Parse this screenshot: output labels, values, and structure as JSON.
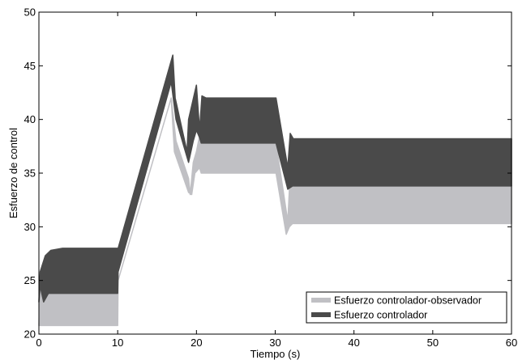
{
  "chart_data": {
    "type": "area",
    "title": "",
    "xlabel": "Tiempo (s)",
    "ylabel": "Esfuerzo de control",
    "xlim": [
      0,
      60
    ],
    "ylim": [
      20,
      50
    ],
    "xticks": [
      0,
      10,
      20,
      30,
      40,
      50,
      60
    ],
    "yticks": [
      20,
      25,
      30,
      35,
      40,
      45,
      50
    ],
    "grid": false,
    "legend_position": "bottom-right",
    "series": [
      {
        "name": "Esfuerzo controlador-observador",
        "color": "#c0c0c4",
        "upper": [
          [
            0,
            20.8
          ],
          [
            0.15,
            25.5
          ],
          [
            0.6,
            23.2
          ],
          [
            1.2,
            23.8
          ],
          [
            10,
            23.8
          ],
          [
            10.05,
            25.0
          ],
          [
            16.8,
            42.0
          ],
          [
            17.4,
            38.0
          ],
          [
            19.0,
            34.5
          ],
          [
            19.2,
            33.0
          ],
          [
            19.6,
            36.0
          ],
          [
            20.0,
            37.0
          ],
          [
            20.4,
            38.5
          ],
          [
            20.6,
            37.8
          ],
          [
            30.1,
            37.8
          ],
          [
            31.6,
            30.5
          ],
          [
            31.8,
            33.5
          ],
          [
            32.2,
            33.8
          ],
          [
            60,
            33.8
          ]
        ],
        "lower": [
          [
            0,
            20.8
          ],
          [
            10,
            20.8
          ],
          [
            10.05,
            25.0
          ],
          [
            16.8,
            42.0
          ],
          [
            17.2,
            37.0
          ],
          [
            19.0,
            33.2
          ],
          [
            19.4,
            33.0
          ],
          [
            19.8,
            35.0
          ],
          [
            20.4,
            35.5
          ],
          [
            20.6,
            35.0
          ],
          [
            30.1,
            35.0
          ],
          [
            31.4,
            29.3
          ],
          [
            31.8,
            30.0
          ],
          [
            32.2,
            30.3
          ],
          [
            60,
            30.3
          ]
        ]
      },
      {
        "name": "Esfuerzo controlador",
        "color": "#4a4a4a",
        "upper": [
          [
            0,
            23.0
          ],
          [
            0.15,
            25.8
          ],
          [
            0.8,
            27.3
          ],
          [
            1.5,
            27.8
          ],
          [
            3,
            28.0
          ],
          [
            10,
            28.0
          ],
          [
            10.05,
            28.0
          ],
          [
            17.0,
            46.0
          ],
          [
            17.3,
            42.0
          ],
          [
            18.8,
            37.0
          ],
          [
            19.0,
            40.0
          ],
          [
            20.0,
            43.2
          ],
          [
            20.4,
            39.0
          ],
          [
            20.7,
            42.2
          ],
          [
            21.2,
            42.0
          ],
          [
            30.1,
            42.0
          ],
          [
            31.6,
            35.5
          ],
          [
            31.9,
            38.7
          ],
          [
            32.3,
            38.2
          ],
          [
            60,
            38.2
          ]
        ],
        "lower": [
          [
            0,
            23.0
          ],
          [
            0.15,
            24.5
          ],
          [
            0.6,
            23.0
          ],
          [
            1.2,
            23.8
          ],
          [
            10,
            23.8
          ],
          [
            10.05,
            25.8
          ],
          [
            16.8,
            43.5
          ],
          [
            17.4,
            40.0
          ],
          [
            19.0,
            36.0
          ],
          [
            19.6,
            38.0
          ],
          [
            20.0,
            39.0
          ],
          [
            20.4,
            38.3
          ],
          [
            20.6,
            37.8
          ],
          [
            30.1,
            37.8
          ],
          [
            31.6,
            33.5
          ],
          [
            32.2,
            33.8
          ],
          [
            60,
            33.8
          ]
        ]
      }
    ]
  }
}
